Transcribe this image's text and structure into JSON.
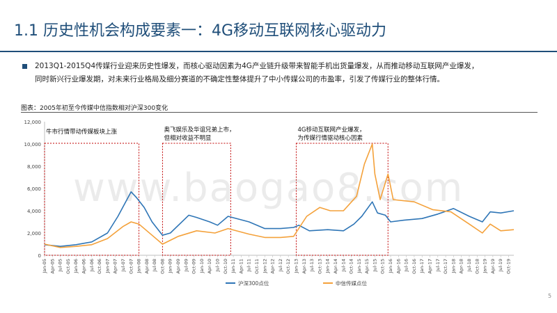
{
  "slide": {
    "title": "1.1 历史性机会构成要素一：4G移动互联网核心驱动力",
    "bullet_line1": "2013Q1-2015Q4传媒行业迎来历史性爆发，而核心驱动因素为4G产业链升级带来智能手机出货量爆发，从而推动移动互联网产业爆发，",
    "bullet_line2": "同时新兴行业爆发期，对未来行业格局及细分赛道的不确定性整体提升了中小传媒公司的市盈率，引发了传媒行业的整体行情。",
    "caption": "图表：2005年初至今传媒中信指数相对沪深300变化",
    "page_number": "5",
    "watermark": "www.baogao8.com"
  },
  "chart_data": {
    "type": "line",
    "title": "",
    "xlabel": "",
    "ylabel": "",
    "ylim": [
      0,
      12000
    ],
    "yticks": [
      0,
      2000,
      4000,
      6000,
      8000,
      10000,
      12000
    ],
    "ytick_labels": [
      "0",
      "2,000",
      "4,000",
      "6,000",
      "8,000",
      "10,000",
      "12,000"
    ],
    "x_start": "Jan-05",
    "x_end": "Dec-19",
    "xtick_labels": [
      "Jan-05",
      "Apr-05",
      "Jul-05",
      "Oct-05",
      "Jan-06",
      "Apr-06",
      "Jul-06",
      "Oct-06",
      "Jan-07",
      "Apr-07",
      "Jul-07",
      "Oct-07",
      "Jan-08",
      "Apr-08",
      "Jul-08",
      "Oct-08",
      "Jan-09",
      "Apr-09",
      "Jul-09",
      "Oct-09",
      "Jan-10",
      "Apr-10",
      "Jul-10",
      "Oct-10",
      "Jan-11",
      "Apr-11",
      "Jul-11",
      "Oct-11",
      "Jan-12",
      "Apr-12",
      "Jul-12",
      "Oct-12",
      "Jan-13",
      "Apr-13",
      "Jul-13",
      "Oct-13",
      "Jan-14",
      "Apr-14",
      "Jul-14",
      "Oct-14",
      "Jan-15",
      "Apr-15",
      "Jul-15",
      "Oct-15",
      "Jan-16",
      "Apr-16",
      "Jul-16",
      "Oct-16",
      "Jan-17",
      "Apr-17",
      "Jul-17",
      "Oct-17",
      "Jan-18",
      "Apr-18",
      "Jul-18",
      "Oct-18",
      "Jan-19",
      "Apr-19",
      "Jul-19",
      "Oct-19"
    ],
    "grid": false,
    "legend_position": "bottom",
    "series": [
      {
        "name": "沪深300点位",
        "color": "#2e75b6",
        "points": [
          [
            "Jan-05",
            950
          ],
          [
            "Jul-05",
            800
          ],
          [
            "Jan-06",
            950
          ],
          [
            "Jul-06",
            1200
          ],
          [
            "Jan-07",
            2000
          ],
          [
            "May-07",
            3500
          ],
          [
            "Oct-07",
            5700
          ],
          [
            "Dec-07",
            5200
          ],
          [
            "Mar-08",
            4300
          ],
          [
            "Jun-08",
            3000
          ],
          [
            "Oct-08",
            1800
          ],
          [
            "Jan-09",
            2000
          ],
          [
            "Aug-09",
            3600
          ],
          [
            "Nov-09",
            3400
          ],
          [
            "Apr-10",
            3000
          ],
          [
            "Jul-10",
            2700
          ],
          [
            "Nov-10",
            3500
          ],
          [
            "Jul-11",
            3000
          ],
          [
            "Jan-12",
            2400
          ],
          [
            "Jul-12",
            2400
          ],
          [
            "Dec-12",
            2500
          ],
          [
            "Feb-13",
            2700
          ],
          [
            "Jun-13",
            2200
          ],
          [
            "Jan-14",
            2300
          ],
          [
            "Jul-14",
            2200
          ],
          [
            "Nov-14",
            2800
          ],
          [
            "Feb-15",
            3500
          ],
          [
            "Jun-15",
            4800
          ],
          [
            "Aug-15",
            3800
          ],
          [
            "Nov-15",
            3600
          ],
          [
            "Jan-16",
            3000
          ],
          [
            "Jun-16",
            3150
          ],
          [
            "Jan-17",
            3300
          ],
          [
            "Jul-17",
            3700
          ],
          [
            "Jan-18",
            4200
          ],
          [
            "Jul-18",
            3500
          ],
          [
            "Dec-18",
            3000
          ],
          [
            "Mar-19",
            3900
          ],
          [
            "Jul-19",
            3800
          ],
          [
            "Dec-19",
            4000
          ]
        ]
      },
      {
        "name": "中信传媒点位",
        "color": "#f4a13a",
        "points": [
          [
            "Jan-05",
            1000
          ],
          [
            "Jul-05",
            700
          ],
          [
            "Jan-06",
            800
          ],
          [
            "Jul-06",
            950
          ],
          [
            "Jan-07",
            1500
          ],
          [
            "Jul-07",
            2600
          ],
          [
            "Oct-07",
            3000
          ],
          [
            "Jan-08",
            2800
          ],
          [
            "Jun-08",
            1800
          ],
          [
            "Oct-08",
            1000
          ],
          [
            "Apr-09",
            1700
          ],
          [
            "Nov-09",
            2200
          ],
          [
            "Jun-10",
            2000
          ],
          [
            "Nov-10",
            2400
          ],
          [
            "Jul-11",
            1900
          ],
          [
            "Jan-12",
            1600
          ],
          [
            "Jul-12",
            1600
          ],
          [
            "Dec-12",
            1700
          ],
          [
            "May-13",
            3500
          ],
          [
            "Oct-13",
            4300
          ],
          [
            "Feb-14",
            4000
          ],
          [
            "Jul-14",
            4000
          ],
          [
            "Dec-14",
            5300
          ],
          [
            "Mar-15",
            8200
          ],
          [
            "Jun-15",
            10000
          ],
          [
            "Jul-15",
            7300
          ],
          [
            "Sep-15",
            5000
          ],
          [
            "Dec-15",
            7300
          ],
          [
            "Feb-16",
            5000
          ],
          [
            "Oct-16",
            4800
          ],
          [
            "May-17",
            4100
          ],
          [
            "Dec-17",
            3900
          ],
          [
            "Jul-18",
            2800
          ],
          [
            "Dec-18",
            2000
          ],
          [
            "Mar-19",
            2800
          ],
          [
            "Jul-19",
            2200
          ],
          [
            "Dec-19",
            2300
          ]
        ]
      }
    ],
    "annotations": [
      {
        "text": "牛市行情带动传媒板块上涨",
        "from": "Jan-05",
        "to": "Jan-08"
      },
      {
        "text_line1": "奥飞娱乐及华谊兄弟上市，",
        "text_line2": "但相对收益不明显",
        "from": "Oct-08",
        "to": "Dec-10"
      },
      {
        "text_line1": "4G移动互联网产业爆发，",
        "text_line2": "为传媒行情驱动核心因素",
        "from": "Jan-13",
        "to": "Dec-15"
      }
    ]
  }
}
